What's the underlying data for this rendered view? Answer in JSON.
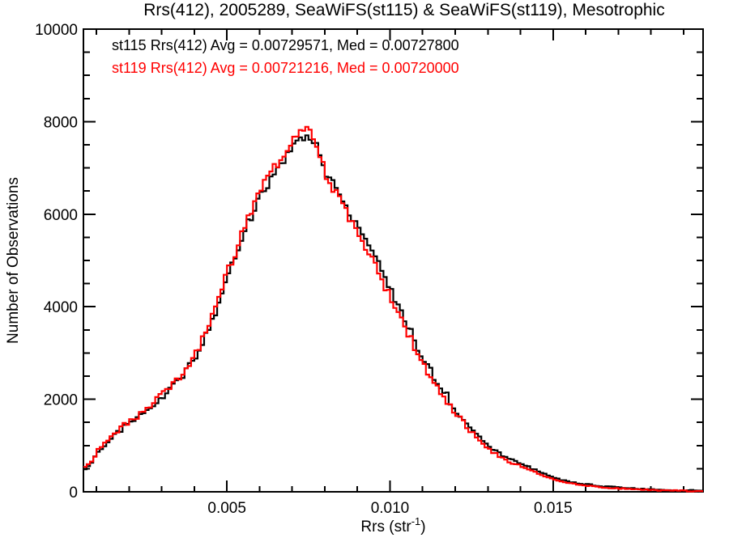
{
  "chart_data": {
    "type": "histogram",
    "title": "Rrs(412), 2005289, SeaWiFS(st115) & SeaWiFS(st119), Mesotrophic",
    "xlabel": "Rrs (str⁻¹)",
    "xlabel_parts": {
      "base": "Rrs (str",
      "sup": "-1",
      "close": ")"
    },
    "ylabel": "Number of Observations",
    "xlim": [
      0.0006,
      0.0196
    ],
    "ylim": [
      0,
      10000
    ],
    "grid": false,
    "legend_position": "top-left-inside",
    "x_major_ticks": [
      0.005,
      0.01,
      0.015
    ],
    "x_major_tick_labels": [
      "0.005",
      "0.010",
      "0.015"
    ],
    "x_minor_step": 0.001,
    "y_major_ticks": [
      0,
      2000,
      4000,
      6000,
      8000,
      10000
    ],
    "y_major_tick_labels": [
      "0",
      "2000",
      "4000",
      "6000",
      "8000",
      "10000"
    ],
    "y_minor_step": 500,
    "bin_width": 0.0001,
    "series": [
      {
        "name": "st115",
        "color": "#000000",
        "stats_label": "st115 Rrs(412) Avg = 0.00729571, Med = 0.00727800",
        "avg": 0.00729571,
        "med": 0.007278,
        "points": [
          [
            0.0006,
            500
          ],
          [
            0.0008,
            620
          ],
          [
            0.001,
            880
          ],
          [
            0.0012,
            1000
          ],
          [
            0.0014,
            1150
          ],
          [
            0.0016,
            1280
          ],
          [
            0.0018,
            1400
          ],
          [
            0.002,
            1510
          ],
          [
            0.0022,
            1600
          ],
          [
            0.0024,
            1680
          ],
          [
            0.0026,
            1790
          ],
          [
            0.0028,
            1930
          ],
          [
            0.003,
            2070
          ],
          [
            0.0032,
            2200
          ],
          [
            0.0034,
            2350
          ],
          [
            0.0036,
            2480
          ],
          [
            0.0038,
            2700
          ],
          [
            0.004,
            2950
          ],
          [
            0.0042,
            3200
          ],
          [
            0.0044,
            3550
          ],
          [
            0.0046,
            3850
          ],
          [
            0.0048,
            4250
          ],
          [
            0.005,
            4700
          ],
          [
            0.0052,
            5050
          ],
          [
            0.0054,
            5450
          ],
          [
            0.0056,
            5800
          ],
          [
            0.0058,
            6100
          ],
          [
            0.006,
            6450
          ],
          [
            0.0062,
            6650
          ],
          [
            0.0064,
            6900
          ],
          [
            0.0066,
            7050
          ],
          [
            0.0068,
            7250
          ],
          [
            0.007,
            7450
          ],
          [
            0.0072,
            7600
          ],
          [
            0.0074,
            7650
          ],
          [
            0.0076,
            7600
          ],
          [
            0.0078,
            7350
          ],
          [
            0.008,
            6900
          ],
          [
            0.0082,
            6650
          ],
          [
            0.0084,
            6400
          ],
          [
            0.0086,
            6200
          ],
          [
            0.0088,
            5900
          ],
          [
            0.009,
            5750
          ],
          [
            0.0092,
            5450
          ],
          [
            0.0094,
            5200
          ],
          [
            0.0096,
            4950
          ],
          [
            0.0098,
            4600
          ],
          [
            0.01,
            4300
          ],
          [
            0.0102,
            4000
          ],
          [
            0.0104,
            3700
          ],
          [
            0.0106,
            3450
          ],
          [
            0.0108,
            3100
          ],
          [
            0.011,
            2800
          ],
          [
            0.0112,
            2600
          ],
          [
            0.0114,
            2350
          ],
          [
            0.0116,
            2200
          ],
          [
            0.0118,
            1950
          ],
          [
            0.012,
            1720
          ],
          [
            0.0122,
            1600
          ],
          [
            0.0124,
            1400
          ],
          [
            0.0126,
            1280
          ],
          [
            0.0128,
            1100
          ],
          [
            0.013,
            980
          ],
          [
            0.0132,
            880
          ],
          [
            0.0134,
            790
          ],
          [
            0.0136,
            720
          ],
          [
            0.0138,
            650
          ],
          [
            0.014,
            600
          ],
          [
            0.0142,
            540
          ],
          [
            0.0144,
            470
          ],
          [
            0.0146,
            410
          ],
          [
            0.0148,
            350
          ],
          [
            0.015,
            300
          ],
          [
            0.0152,
            260
          ],
          [
            0.0154,
            230
          ],
          [
            0.0156,
            200
          ],
          [
            0.0158,
            180
          ],
          [
            0.016,
            160
          ],
          [
            0.0164,
            125
          ],
          [
            0.0168,
            100
          ],
          [
            0.0172,
            80
          ],
          [
            0.0176,
            62
          ],
          [
            0.018,
            50
          ],
          [
            0.0184,
            42
          ],
          [
            0.0188,
            34
          ],
          [
            0.0192,
            28
          ],
          [
            0.0196,
            25
          ]
        ]
      },
      {
        "name": "st119",
        "color": "#ff0000",
        "stats_label": "st119 Rrs(412) Avg = 0.00721216, Med = 0.00720000",
        "avg": 0.00721216,
        "med": 0.0072,
        "points": [
          [
            0.0006,
            520
          ],
          [
            0.0008,
            650
          ],
          [
            0.001,
            910
          ],
          [
            0.0012,
            1040
          ],
          [
            0.0014,
            1180
          ],
          [
            0.0016,
            1310
          ],
          [
            0.0018,
            1440
          ],
          [
            0.002,
            1545
          ],
          [
            0.0022,
            1630
          ],
          [
            0.0024,
            1720
          ],
          [
            0.0026,
            1835
          ],
          [
            0.0028,
            1980
          ],
          [
            0.003,
            2110
          ],
          [
            0.0032,
            2250
          ],
          [
            0.0034,
            2400
          ],
          [
            0.0036,
            2550
          ],
          [
            0.0038,
            2780
          ],
          [
            0.004,
            3020
          ],
          [
            0.0042,
            3290
          ],
          [
            0.0044,
            3650
          ],
          [
            0.0046,
            3950
          ],
          [
            0.0048,
            4400
          ],
          [
            0.005,
            4800
          ],
          [
            0.0052,
            5160
          ],
          [
            0.0054,
            5560
          ],
          [
            0.0056,
            5940
          ],
          [
            0.0058,
            6240
          ],
          [
            0.006,
            6560
          ],
          [
            0.0062,
            6760
          ],
          [
            0.0064,
            7000
          ],
          [
            0.0066,
            7160
          ],
          [
            0.0068,
            7380
          ],
          [
            0.007,
            7580
          ],
          [
            0.0072,
            7790
          ],
          [
            0.0074,
            7840
          ],
          [
            0.0076,
            7640
          ],
          [
            0.0078,
            7290
          ],
          [
            0.008,
            6840
          ],
          [
            0.0082,
            6560
          ],
          [
            0.0084,
            6300
          ],
          [
            0.0086,
            6070
          ],
          [
            0.0088,
            5790
          ],
          [
            0.009,
            5600
          ],
          [
            0.0092,
            5290
          ],
          [
            0.0094,
            5040
          ],
          [
            0.0096,
            4790
          ],
          [
            0.0098,
            4440
          ],
          [
            0.01,
            4150
          ],
          [
            0.0102,
            3860
          ],
          [
            0.0104,
            3560
          ],
          [
            0.0106,
            3310
          ],
          [
            0.0108,
            2960
          ],
          [
            0.011,
            2690
          ],
          [
            0.0112,
            2490
          ],
          [
            0.0114,
            2250
          ],
          [
            0.0116,
            2080
          ],
          [
            0.0118,
            1830
          ],
          [
            0.012,
            1640
          ],
          [
            0.0122,
            1510
          ],
          [
            0.0124,
            1320
          ],
          [
            0.0126,
            1190
          ],
          [
            0.0128,
            1020
          ],
          [
            0.013,
            910
          ],
          [
            0.0132,
            815
          ],
          [
            0.0134,
            725
          ],
          [
            0.0136,
            655
          ],
          [
            0.0138,
            595
          ],
          [
            0.014,
            550
          ],
          [
            0.0142,
            490
          ],
          [
            0.0144,
            420
          ],
          [
            0.0146,
            360
          ],
          [
            0.0148,
            310
          ],
          [
            0.015,
            265
          ],
          [
            0.0152,
            228
          ],
          [
            0.0154,
            198
          ],
          [
            0.0156,
            172
          ],
          [
            0.0158,
            152
          ],
          [
            0.016,
            133
          ],
          [
            0.0164,
            102
          ],
          [
            0.0168,
            80
          ],
          [
            0.0172,
            62
          ],
          [
            0.0176,
            47
          ],
          [
            0.018,
            37
          ],
          [
            0.0184,
            29
          ],
          [
            0.0188,
            23
          ],
          [
            0.0192,
            18
          ],
          [
            0.0196,
            15
          ]
        ]
      }
    ],
    "plot_frame_color": "#000000",
    "background_color": "#ffffff"
  }
}
